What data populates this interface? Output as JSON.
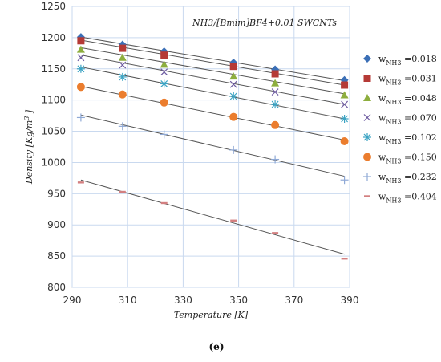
{
  "chart_data": {
    "type": "scatter",
    "title": "",
    "annotation": "NH3/[Bmim]BF4+0.01 SWCNTs",
    "xlabel": "Temperature [K]",
    "ylabel_main": "Density [Kg/m",
    "ylabel_sup": "3",
    "ylabel_end": " ]",
    "caption": "(e)",
    "xlim": [
      290,
      390
    ],
    "ylim": [
      800,
      1250
    ],
    "xticks": [
      290,
      310,
      330,
      350,
      370,
      390
    ],
    "yticks": [
      800,
      850,
      900,
      950,
      1000,
      1050,
      1100,
      1150,
      1200,
      1250
    ],
    "grid": true,
    "legend_position": "right",
    "series": [
      {
        "label_w": "w",
        "label_sub": "NH3",
        "label_val": " =0.018",
        "marker": "diamond",
        "color": "#3B6FB6",
        "x": [
          293.15,
          308.15,
          323.15,
          348.15,
          363.15,
          388.15
        ],
        "y": [
          1201,
          1189,
          1178,
          1160,
          1149,
          1132
        ],
        "fit": [
          1201,
          1131
        ]
      },
      {
        "label_w": "w",
        "label_sub": "NH3",
        "label_val": " =0.031",
        "marker": "square",
        "color": "#B53A36",
        "x": [
          293.15,
          308.15,
          323.15,
          348.15,
          363.15,
          388.15
        ],
        "y": [
          1195,
          1183,
          1172,
          1154,
          1142,
          1124
        ],
        "fit": [
          1196,
          1124
        ]
      },
      {
        "label_w": "w",
        "label_sub": "NH3",
        "label_val": " =0.048",
        "marker": "triangle",
        "color": "#8DAE3E",
        "x": [
          293.15,
          308.15,
          323.15,
          348.15,
          363.15,
          388.15
        ],
        "y": [
          1181,
          1168,
          1157,
          1138,
          1127,
          1108
        ],
        "fit": [
          1184,
          1110
        ]
      },
      {
        "label_w": "w",
        "label_sub": "NH3",
        "label_val": " =0.070",
        "marker": "x",
        "color": "#6C5AA0",
        "x": [
          293.15,
          308.15,
          323.15,
          348.15,
          363.15,
          388.15
        ],
        "y": [
          1168,
          1156,
          1145,
          1125,
          1113,
          1093
        ],
        "fit": [
          1172,
          1093
        ]
      },
      {
        "label_w": "w",
        "label_sub": "NH3",
        "label_val": " =0.102",
        "marker": "asterisk",
        "color": "#3BA3C3",
        "x": [
          293.15,
          308.15,
          323.15,
          348.15,
          363.15,
          388.15
        ],
        "y": [
          1150,
          1137,
          1126,
          1106,
          1093,
          1070
        ],
        "fit": [
          1153,
          1070
        ]
      },
      {
        "label_w": "w",
        "label_sub": "NH3",
        "label_val": " =0.150",
        "marker": "circle",
        "color": "#EB7D2E",
        "x": [
          293.15,
          308.15,
          323.15,
          348.15,
          363.15,
          388.15
        ],
        "y": [
          1121,
          1109,
          1096,
          1073,
          1060,
          1034
        ],
        "fit": [
          1122,
          1036
        ]
      },
      {
        "label_w": "w",
        "label_sub": "NH3",
        "label_val": " =0.232",
        "marker": "plus",
        "color": "#8FA9D6",
        "x": [
          293.15,
          308.15,
          323.15,
          348.15,
          363.15,
          388.15
        ],
        "y": [
          1072,
          1058,
          1045,
          1020,
          1005,
          972
        ],
        "fit": [
          1076,
          978
        ]
      },
      {
        "label_w": "w",
        "label_sub": "NH3",
        "label_val": " =0.404",
        "marker": "dash",
        "color": "#D37F80",
        "x": [
          293.15,
          308.15,
          323.15,
          348.15,
          363.15,
          388.15
        ],
        "y": [
          968,
          953,
          935,
          907,
          887,
          846
        ],
        "fit": [
          972,
          853
        ]
      }
    ]
  }
}
